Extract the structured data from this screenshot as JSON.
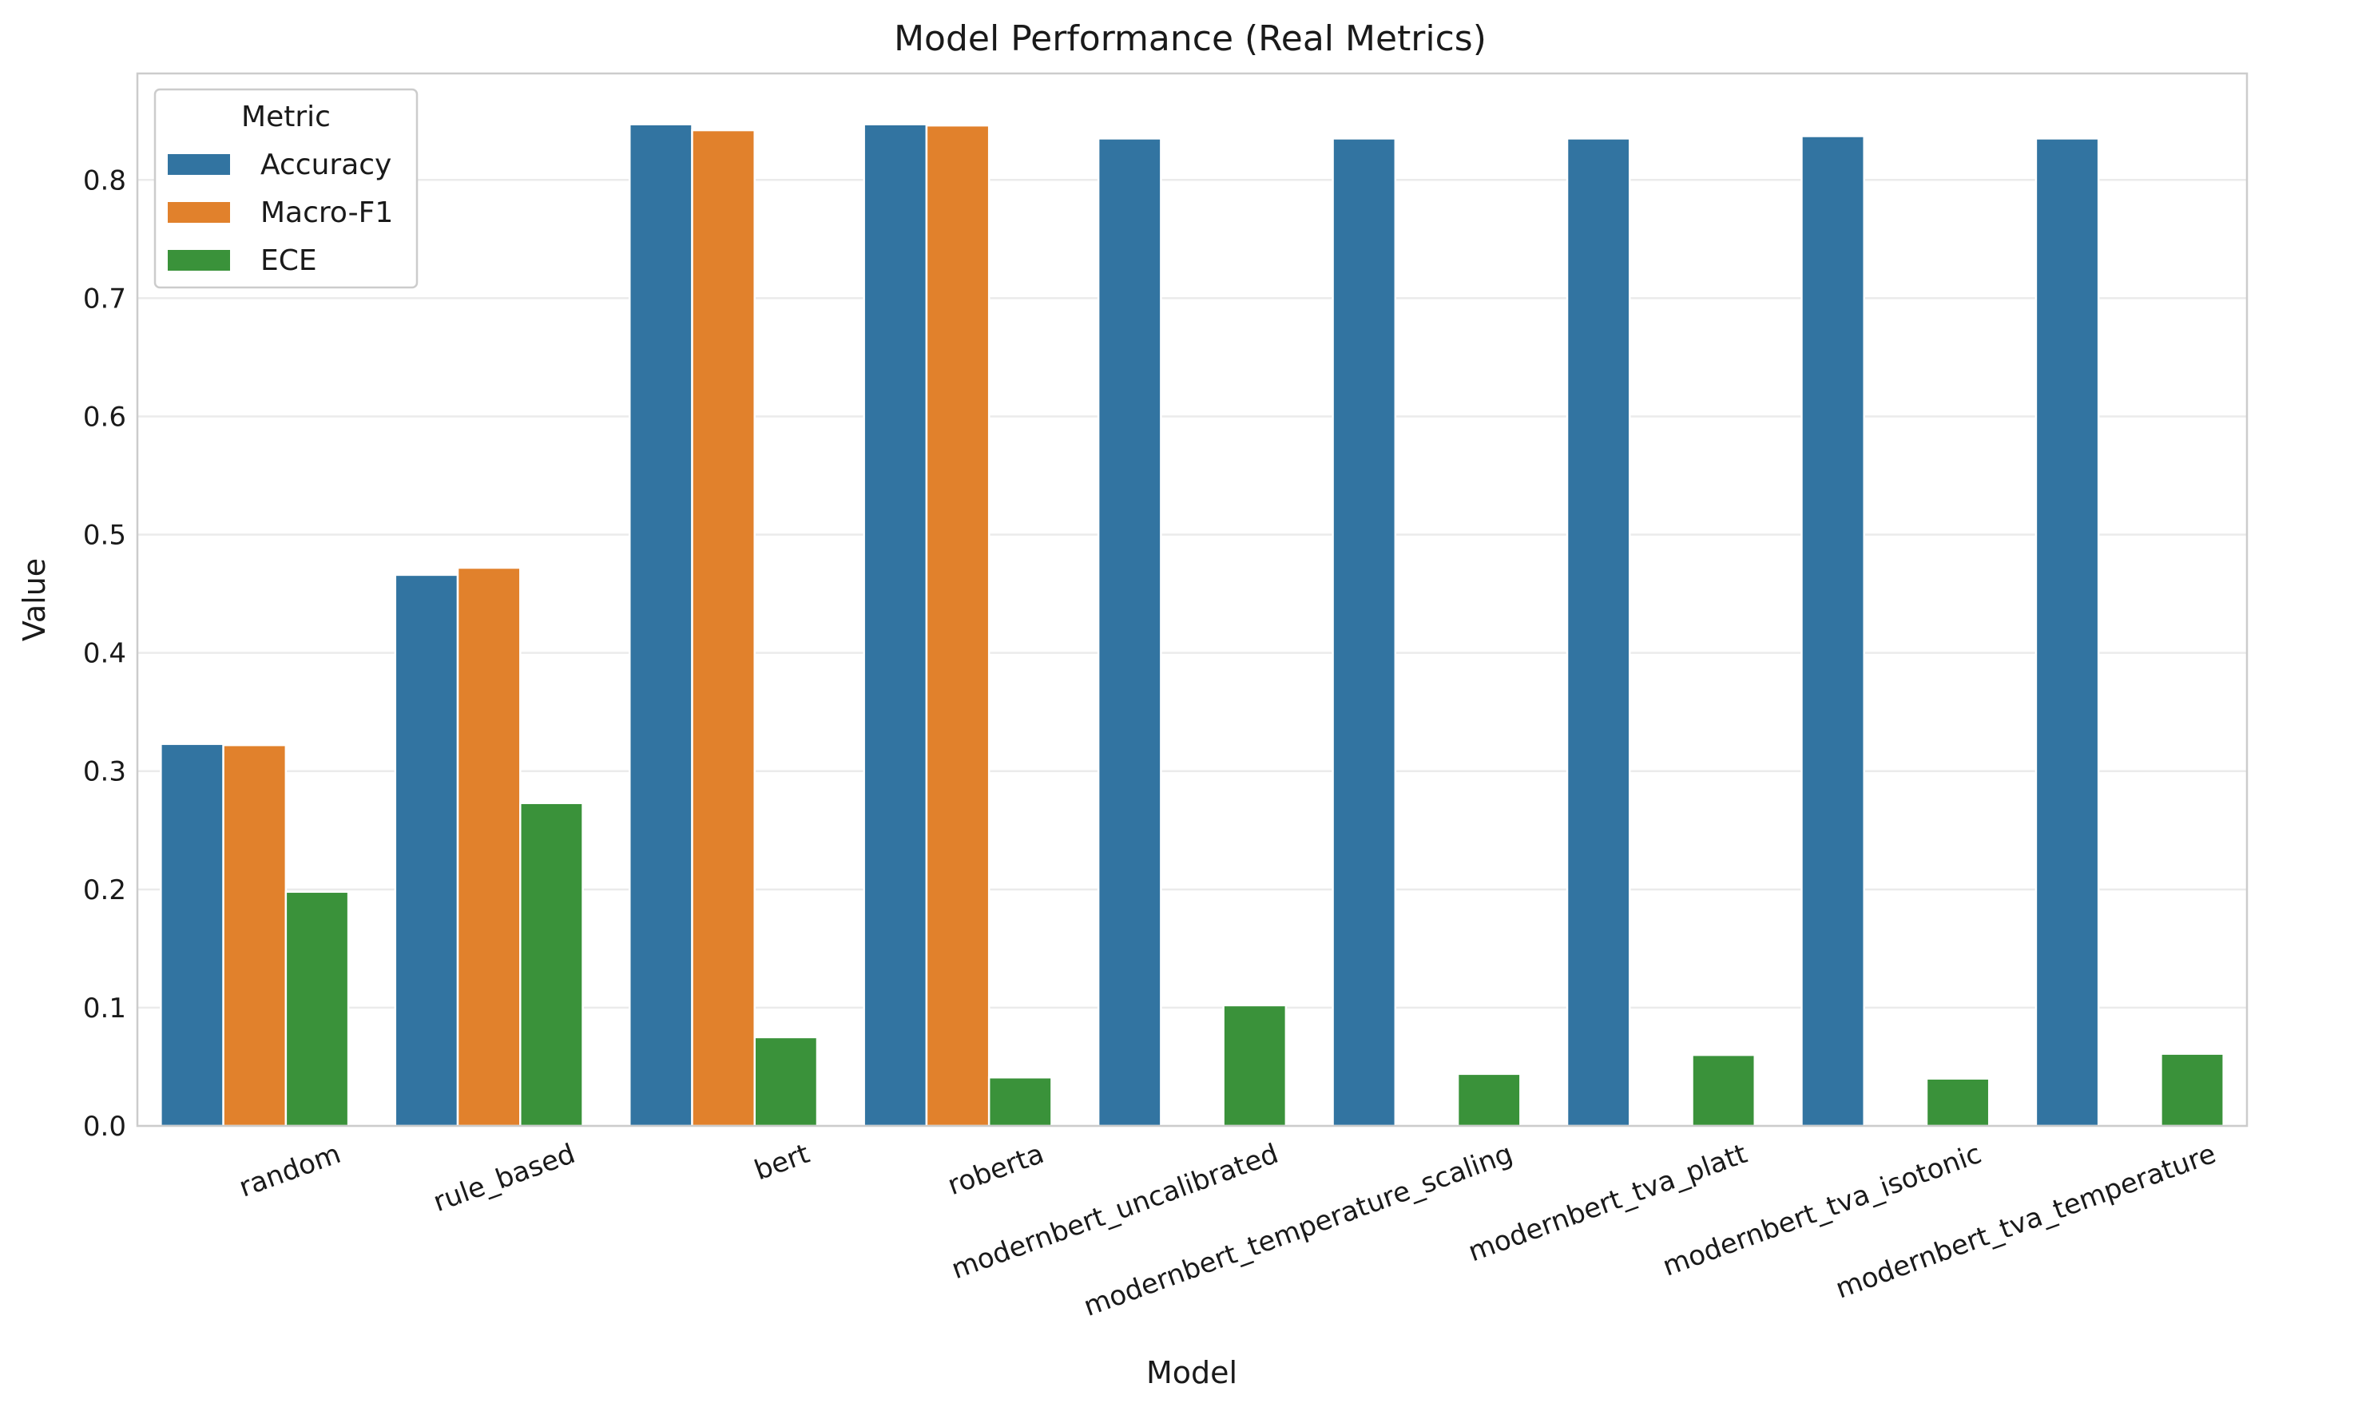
{
  "chart_data": {
    "type": "bar",
    "title": "Model Performance (Real Metrics)",
    "xlabel": "Model",
    "ylabel": "Value",
    "ylim": [
      0,
      0.89
    ],
    "yticks": [
      0.0,
      0.1,
      0.2,
      0.3,
      0.4,
      0.5,
      0.6,
      0.7,
      0.8
    ],
    "ytick_labels": [
      "0.0",
      "0.1",
      "0.2",
      "0.3",
      "0.4",
      "0.5",
      "0.6",
      "0.7",
      "0.8"
    ],
    "grid": true,
    "legend": {
      "title": "Metric",
      "placement": "top-left"
    },
    "categories": [
      "random",
      "rule_based",
      "bert",
      "roberta",
      "modernbert_uncalibrated",
      "modernbert_temperature_scaling",
      "modernbert_tva_platt",
      "modernbert_tva_isotonic",
      "modernbert_tva_temperature"
    ],
    "series": [
      {
        "name": "Accuracy",
        "color": "#3274a1",
        "values": [
          0.323,
          0.466,
          0.847,
          0.847,
          0.835,
          0.835,
          0.835,
          0.837,
          0.835
        ]
      },
      {
        "name": "Macro-F1",
        "color": "#e1812c",
        "values": [
          0.322,
          0.472,
          0.842,
          0.846,
          null,
          null,
          null,
          null,
          null
        ]
      },
      {
        "name": "ECE",
        "color": "#3a923a",
        "values": [
          0.198,
          0.273,
          0.075,
          0.041,
          0.102,
          0.044,
          0.06,
          0.04,
          0.061
        ]
      }
    ]
  }
}
